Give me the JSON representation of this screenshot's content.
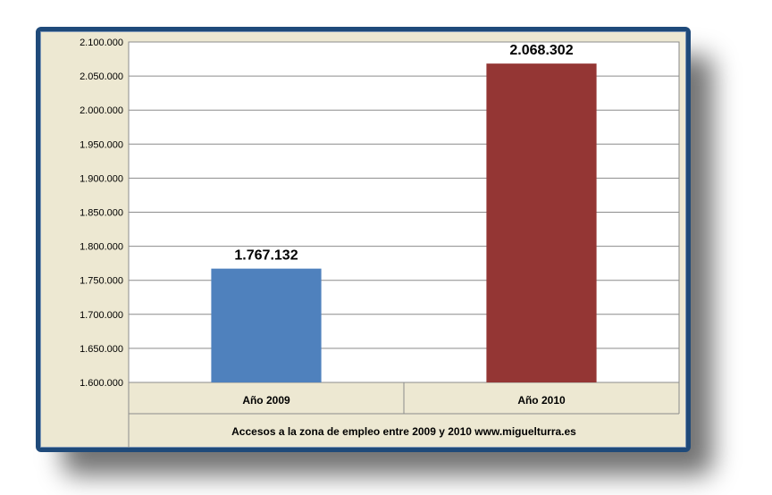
{
  "chart_data": {
    "type": "bar",
    "categories": [
      "Año 2009",
      "Año 2010"
    ],
    "values": [
      1767132,
      2068302
    ],
    "value_labels": [
      "1.767.132",
      "2.068.302"
    ],
    "colors": [
      "#4f81bd",
      "#943634"
    ],
    "title": "",
    "xlabel": "Accesos a la zona de empleo entre 2009  y 2010  www.miguelturra.es",
    "ylabel": "",
    "ylim": [
      1600000,
      2100000
    ],
    "yticks": [
      1600000,
      1650000,
      1700000,
      1750000,
      1800000,
      1850000,
      1900000,
      1950000,
      2000000,
      2050000,
      2100000
    ],
    "ytick_labels": [
      "1.600.000",
      "1.650.000",
      "1.700.000",
      "1.750.000",
      "1.800.000",
      "1.850.000",
      "1.900.000",
      "1.950.000",
      "2.000.000",
      "2.050.000",
      "2.100.000"
    ],
    "grid": true,
    "legend": "none"
  }
}
